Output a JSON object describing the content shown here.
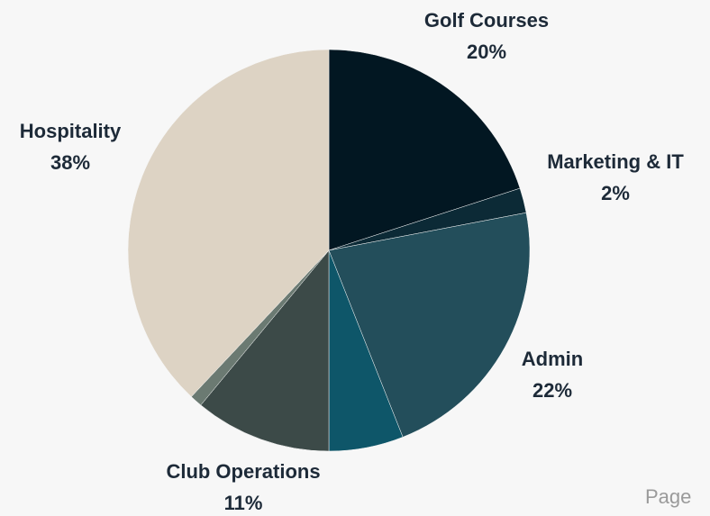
{
  "chart_data": {
    "type": "pie",
    "categories": [
      "Golf Courses",
      "Marketing & IT",
      "Admin",
      null,
      "Club Operations",
      null,
      "Hospitality"
    ],
    "values": [
      20,
      2,
      22,
      6,
      11,
      1,
      38
    ],
    "value_labels": [
      "20%",
      "2%",
      "22%",
      null,
      "11%",
      null,
      "38%"
    ],
    "colors": [
      "#021722",
      "#0c2a36",
      "#234e5b",
      "#0e5669",
      "#3c4a48",
      "#6b7a72",
      "#ddd3c4"
    ]
  },
  "footer": {
    "page_label": "Page"
  }
}
